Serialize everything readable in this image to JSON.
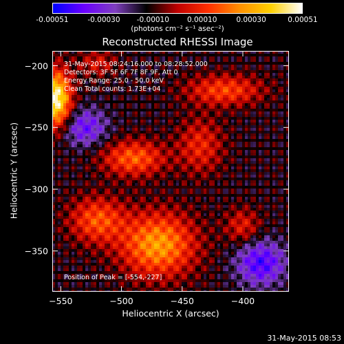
{
  "colorbar": {
    "ticks": [
      {
        "label": "-0.00051",
        "value": -0.00051
      },
      {
        "label": "-0.00030",
        "value": -0.0003
      },
      {
        "label": "-0.00010",
        "value": -0.0001
      },
      {
        "label": "0.00010",
        "value": 0.0001
      },
      {
        "label": "0.00030",
        "value": 0.0003
      },
      {
        "label": "0.00051",
        "value": 0.00051
      }
    ],
    "range": [
      -0.00051,
      0.00051
    ],
    "colors": [
      "#0000ff",
      "#6a00ff",
      "#7f3fbf",
      "#000000",
      "#c00000",
      "#ff3000",
      "#ff9000",
      "#ffd000",
      "#ffffff"
    ],
    "unit_label": "(photons cm⁻² s⁻¹ asec⁻²)"
  },
  "chart_data": {
    "type": "heatmap",
    "title": "Reconstructed RHESSI Image",
    "xlabel": "Heliocentric X (arcsec)",
    "ylabel": "Heliocentric Y (arcsec)",
    "xlim": [
      -557,
      -362
    ],
    "ylim": [
      -383,
      -188
    ],
    "x_ticks": [
      -550,
      -500,
      -450,
      -400
    ],
    "y_ticks": [
      -200,
      -250,
      -300,
      -350
    ],
    "peak": {
      "x": -554,
      "y": -227
    }
  },
  "annotations": {
    "time_range": "31-May-2015 08:24:16.000 to 08:28:52.000",
    "detectors": "Detectors: 3F 5F 6F 7F 8F 9F, Att 0",
    "energy": "Energy Range: 25.0 - 50.0 keV",
    "method": "Clean    Total counts: 1.73E+04",
    "peak_label": "Position of Peak = [-554,-227]"
  },
  "timestamp": "31-May-2015 08:53"
}
